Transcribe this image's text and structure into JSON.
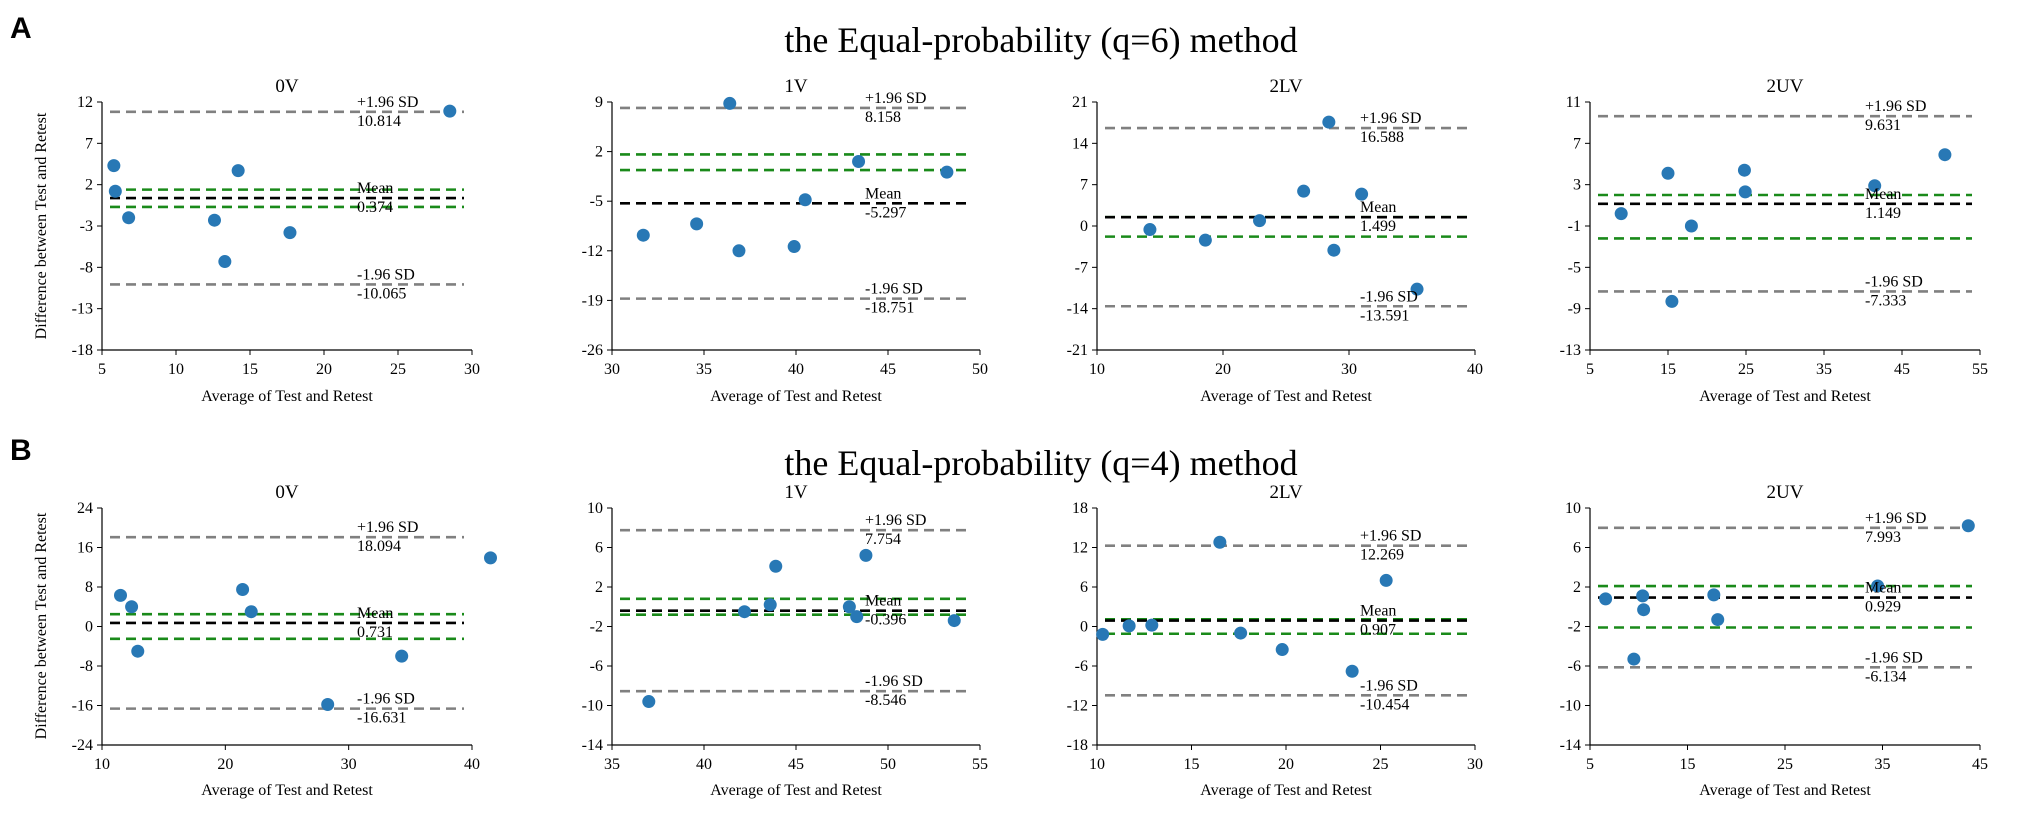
{
  "rows": [
    {
      "letter": "A",
      "title": "the Equal-probability (q=6) method",
      "ylabel": "Difference between Test and Retest",
      "panels": [
        {
          "title": "0V",
          "xlabel": "Average of Test and Retest",
          "xticks": [
            5,
            10,
            15,
            20,
            25,
            30
          ],
          "yticks": [
            12,
            7,
            2,
            -3,
            -8,
            -13,
            -18
          ],
          "mean": 0.374,
          "upper": 10.814,
          "lower": -10.065,
          "green": [
            1.4,
            -0.7
          ],
          "points": [
            [
              5.8,
              4.3
            ],
            [
              5.9,
              1.2
            ],
            [
              6.8,
              -2.0
            ],
            [
              12.6,
              -2.3
            ],
            [
              13.3,
              -7.3
            ],
            [
              14.2,
              3.7
            ],
            [
              17.7,
              -3.8
            ],
            [
              28.5,
              10.9
            ]
          ],
          "mean_label": "Mean",
          "upper_label": "+1.96 SD",
          "lower_label": "-1.96 SD",
          "mean_value": "0.374",
          "upper_value": "10.814",
          "lower_value": "-10.065"
        },
        {
          "title": "1V",
          "xlabel": "Average of Test and Retest",
          "xticks": [
            30,
            35,
            40,
            45,
            50
          ],
          "yticks": [
            9,
            2,
            -5,
            -12,
            -19,
            -26
          ],
          "mean": -5.297,
          "upper": 8.158,
          "lower": -18.751,
          "green": [
            1.6,
            -0.6
          ],
          "points": [
            [
              31.7,
              -9.8
            ],
            [
              34.6,
              -8.2
            ],
            [
              36.4,
              8.8
            ],
            [
              36.9,
              -12.0
            ],
            [
              39.9,
              -11.4
            ],
            [
              40.5,
              -4.8
            ],
            [
              43.4,
              0.6
            ],
            [
              48.2,
              -0.9
            ]
          ],
          "mean_label": "Mean",
          "upper_label": "+1.96 SD",
          "lower_label": "-1.96 SD",
          "mean_value": "-5.297",
          "upper_value": "8.158",
          "lower_value": "-18.751"
        },
        {
          "title": "2LV",
          "xlabel": "Average of Test and Retest",
          "xticks": [
            10,
            20,
            30,
            40
          ],
          "yticks": [
            21,
            14,
            7,
            0,
            -7,
            -14,
            -21
          ],
          "mean": 1.499,
          "upper": 16.588,
          "lower": -13.591,
          "green": [
            1.5,
            -1.8
          ],
          "points": [
            [
              14.2,
              -0.6
            ],
            [
              18.6,
              -2.4
            ],
            [
              22.9,
              0.9
            ],
            [
              26.4,
              5.9
            ],
            [
              28.4,
              17.6
            ],
            [
              28.8,
              -4.1
            ],
            [
              31.0,
              5.4
            ],
            [
              35.4,
              -10.7
            ]
          ],
          "mean_label": "Mean",
          "upper_label": "+1.96 SD",
          "lower_label": "-1.96 SD",
          "mean_value": "1.499",
          "upper_value": "16.588",
          "lower_value": "-13.591"
        },
        {
          "title": "2UV",
          "xlabel": "Average of Test and Retest",
          "xticks": [
            5,
            15,
            25,
            35,
            45,
            55
          ],
          "yticks": [
            11,
            7,
            3,
            -1,
            -5,
            -9,
            -13
          ],
          "mean": 1.149,
          "upper": 9.631,
          "lower": -7.333,
          "green": [
            2.0,
            -2.2
          ],
          "points": [
            [
              9.0,
              0.2
            ],
            [
              15.0,
              4.1
            ],
            [
              15.5,
              -8.3
            ],
            [
              18.0,
              -1.0
            ],
            [
              24.8,
              4.4
            ],
            [
              24.9,
              2.3
            ],
            [
              41.5,
              2.9
            ],
            [
              50.5,
              5.9
            ]
          ],
          "mean_label": "Mean",
          "upper_label": "+1.96 SD",
          "lower_label": "-1.96 SD",
          "mean_value": "1.149",
          "upper_value": "9.631",
          "lower_value": "-7.333"
        }
      ]
    },
    {
      "letter": "B",
      "title": "the Equal-probability (q=4) method",
      "ylabel": "Difference between Test and Retest",
      "panels": [
        {
          "title": "0V",
          "xlabel": "Average of Test and Retest",
          "xticks": [
            10,
            20,
            30,
            40
          ],
          "yticks": [
            24,
            16,
            8,
            0,
            -8,
            -16,
            -24
          ],
          "mean": 0.731,
          "upper": 18.094,
          "lower": -16.631,
          "green": [
            2.5,
            -2.5
          ],
          "points": [
            [
              11.5,
              6.3
            ],
            [
              12.4,
              4.0
            ],
            [
              12.9,
              -5.0
            ],
            [
              21.4,
              7.5
            ],
            [
              22.1,
              3.0
            ],
            [
              28.3,
              -15.8
            ],
            [
              34.3,
              -6.0
            ],
            [
              41.5,
              13.9
            ]
          ],
          "mean_label": "Mean",
          "upper_label": "+1.96 SD",
          "lower_label": "-1.96 SD",
          "mean_value": "0.731",
          "upper_value": "18.094",
          "lower_value": "-16.631"
        },
        {
          "title": "1V",
          "xlabel": "Average of Test and Retest",
          "xticks": [
            35,
            40,
            45,
            50,
            55
          ],
          "yticks": [
            10,
            6,
            2,
            -2,
            -6,
            -10,
            -14
          ],
          "mean": -0.396,
          "upper": 7.754,
          "lower": -8.546,
          "green": [
            0.8,
            -0.8
          ],
          "points": [
            [
              37.0,
              -9.6
            ],
            [
              42.2,
              -0.5
            ],
            [
              43.6,
              0.2
            ],
            [
              43.9,
              4.1
            ],
            [
              47.9,
              0.0
            ],
            [
              48.3,
              -1.0
            ],
            [
              48.8,
              5.2
            ],
            [
              53.6,
              -1.4
            ]
          ],
          "mean_label": "Mean",
          "upper_label": "+1.96 SD",
          "lower_label": "-1.96 SD",
          "mean_value": "-0.396",
          "upper_value": "7.754",
          "lower_value": "-8.546"
        },
        {
          "title": "2LV",
          "xlabel": "Average of Test and Retest",
          "xticks": [
            10,
            15,
            20,
            25,
            30
          ],
          "yticks": [
            18,
            12,
            6,
            0,
            -6,
            -12,
            -18
          ],
          "mean": 0.907,
          "upper": 12.269,
          "lower": -10.454,
          "green": [
            1.1,
            -1.1
          ],
          "points": [
            [
              10.3,
              -1.2
            ],
            [
              11.7,
              0.1
            ],
            [
              12.9,
              0.2
            ],
            [
              16.5,
              12.8
            ],
            [
              17.6,
              -1.0
            ],
            [
              19.8,
              -3.5
            ],
            [
              23.5,
              -6.8
            ],
            [
              25.3,
              7.0
            ]
          ],
          "mean_label": "Mean",
          "upper_label": "+1.96 SD",
          "lower_label": "-1.96 SD",
          "mean_value": "0.907",
          "upper_value": "12.269",
          "lower_value": "-10.454"
        },
        {
          "title": "2UV",
          "xlabel": "Average of Test and Retest",
          "xticks": [
            5,
            15,
            25,
            35,
            45
          ],
          "yticks": [
            10,
            6,
            2,
            -2,
            -6,
            -10,
            -14
          ],
          "mean": 0.929,
          "upper": 7.993,
          "lower": -6.134,
          "green": [
            2.1,
            -2.1
          ],
          "points": [
            [
              6.6,
              0.8
            ],
            [
              9.5,
              -5.3
            ],
            [
              10.4,
              1.1
            ],
            [
              10.5,
              -0.3
            ],
            [
              17.7,
              1.2
            ],
            [
              18.1,
              -1.3
            ],
            [
              34.5,
              2.1
            ],
            [
              43.8,
              8.2
            ]
          ],
          "mean_label": "Mean",
          "upper_label": "+1.96 SD",
          "lower_label": "-1.96 SD",
          "mean_value": "0.929",
          "upper_value": "7.993",
          "lower_value": "-6.134"
        }
      ]
    }
  ],
  "chart_data": [
    {
      "type": "scatter",
      "title": "the Equal-probability (q=6) method — 0V",
      "xlabel": "Average of Test and Retest",
      "ylabel": "Difference between Test and Retest",
      "xlim": [
        5,
        30
      ],
      "ylim": [
        -18,
        12
      ],
      "mean": 0.374,
      "upper_loa": 10.814,
      "lower_loa": -10.065
    },
    {
      "type": "scatter",
      "title": "the Equal-probability (q=6) method — 1V",
      "xlabel": "Average of Test and Retest",
      "xlim": [
        30,
        50
      ],
      "ylim": [
        -26,
        9
      ],
      "mean": -5.297,
      "upper_loa": 8.158,
      "lower_loa": -18.751
    },
    {
      "type": "scatter",
      "title": "the Equal-probability (q=6) method — 2LV",
      "xlabel": "Average of Test and Retest",
      "xlim": [
        10,
        40
      ],
      "ylim": [
        -21,
        21
      ],
      "mean": 1.499,
      "upper_loa": 16.588,
      "lower_loa": -13.591
    },
    {
      "type": "scatter",
      "title": "the Equal-probability (q=6) method — 2UV",
      "xlabel": "Average of Test and Retest",
      "xlim": [
        5,
        55
      ],
      "ylim": [
        -13,
        11
      ],
      "mean": 1.149,
      "upper_loa": 9.631,
      "lower_loa": -7.333
    },
    {
      "type": "scatter",
      "title": "the Equal-probability (q=4) method — 0V",
      "xlabel": "Average of Test and Retest",
      "ylabel": "Difference between Test and Retest",
      "xlim": [
        10,
        42
      ],
      "ylim": [
        -24,
        24
      ],
      "mean": 0.731,
      "upper_loa": 18.094,
      "lower_loa": -16.631
    },
    {
      "type": "scatter",
      "title": "the Equal-probability (q=4) method — 1V",
      "xlabel": "Average of Test and Retest",
      "xlim": [
        35,
        55
      ],
      "ylim": [
        -14,
        10
      ],
      "mean": -0.396,
      "upper_loa": 7.754,
      "lower_loa": -8.546
    },
    {
      "type": "scatter",
      "title": "the Equal-probability (q=4) method — 2LV",
      "xlabel": "Average of Test and Retest",
      "xlim": [
        10,
        30
      ],
      "ylim": [
        -18,
        18
      ],
      "mean": 0.907,
      "upper_loa": 12.269,
      "lower_loa": -10.454
    },
    {
      "type": "scatter",
      "title": "the Equal-probability (q=4) method — 2UV",
      "xlabel": "Average of Test and Retest",
      "xlim": [
        5,
        45
      ],
      "ylim": [
        -14,
        10
      ],
      "mean": 0.929,
      "upper_loa": 7.993,
      "lower_loa": -6.134
    }
  ],
  "colors": {
    "point": "#2878b5",
    "grey_line": "#808080",
    "mean_line": "#000000",
    "green_line": "#1a8a1a"
  }
}
